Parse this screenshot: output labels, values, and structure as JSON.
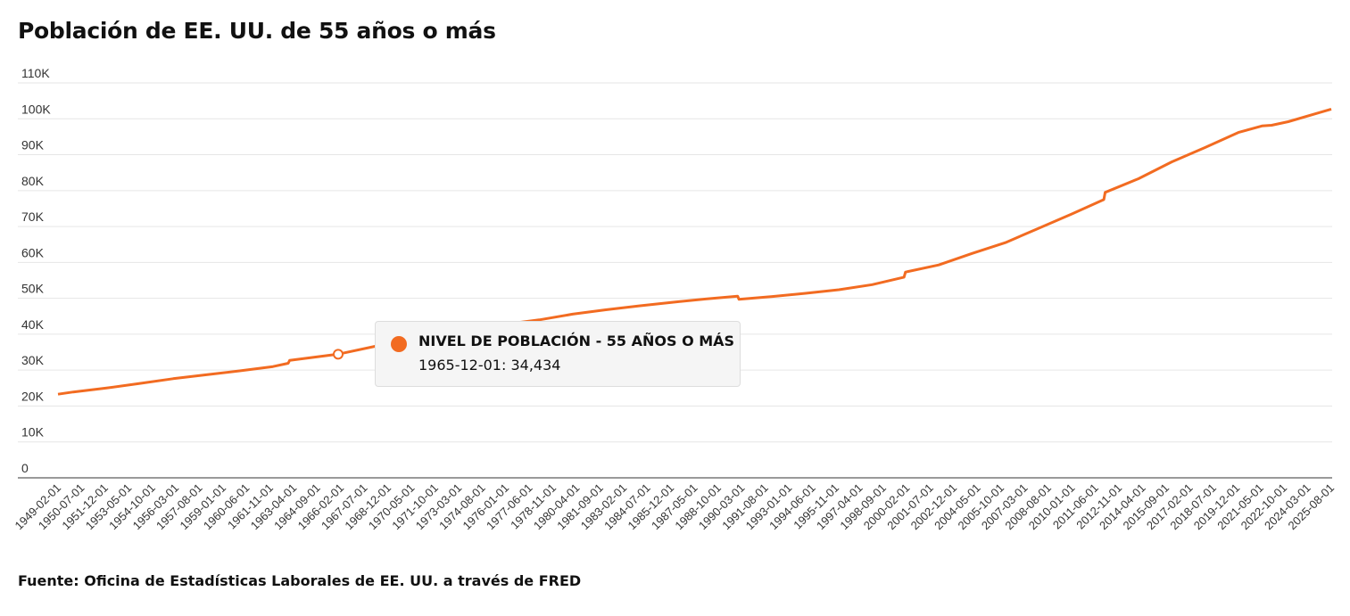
{
  "title": "Población de EE. UU. de 55 años o más",
  "source": "Fuente: Oficina de Estadísticas Laborales de EE. UU. a través de FRED",
  "colors": {
    "series": "#f26b21",
    "grid": "#e6e6e6",
    "axis": "#999999",
    "tooltip_bg": "#f5f5f5"
  },
  "tooltip": {
    "series_name": "NIVEL DE POBLACIÓN - 55 AÑOS O MÁS",
    "value_text": "1965-12-01: 34,434",
    "date": "1965-12-01",
    "value": 34434
  },
  "chart_data": {
    "type": "line",
    "title": "Población de EE. UU. de 55 años o más",
    "xlabel": "",
    "ylabel": "",
    "ylim": [
      0,
      110000
    ],
    "xlim": [
      "1949-02-01",
      "2025-08-01"
    ],
    "grid": true,
    "legend": "none",
    "y_ticks": [
      {
        "value": 0,
        "label": "0"
      },
      {
        "value": 10000,
        "label": "10K"
      },
      {
        "value": 20000,
        "label": "20K"
      },
      {
        "value": 30000,
        "label": "30K"
      },
      {
        "value": 40000,
        "label": "40K"
      },
      {
        "value": 50000,
        "label": "50K"
      },
      {
        "value": 60000,
        "label": "60K"
      },
      {
        "value": 70000,
        "label": "70K"
      },
      {
        "value": 80000,
        "label": "80K"
      },
      {
        "value": 90000,
        "label": "90K"
      },
      {
        "value": 100000,
        "label": "100K"
      },
      {
        "value": 110000,
        "label": "110K"
      }
    ],
    "x_ticks": [
      "1949-02-01",
      "1950-07-01",
      "1951-12-01",
      "1953-05-01",
      "1954-10-01",
      "1956-03-01",
      "1957-08-01",
      "1959-01-01",
      "1960-06-01",
      "1961-11-01",
      "1963-04-01",
      "1964-09-01",
      "1966-02-01",
      "1967-07-01",
      "1968-12-01",
      "1970-05-01",
      "1971-10-01",
      "1973-03-01",
      "1974-08-01",
      "1976-01-01",
      "1977-06-01",
      "1978-11-01",
      "1980-04-01",
      "1981-09-01",
      "1983-02-01",
      "1984-07-01",
      "1985-12-01",
      "1987-05-01",
      "1988-10-01",
      "1990-03-01",
      "1991-08-01",
      "1993-01-01",
      "1994-06-01",
      "1995-11-01",
      "1997-04-01",
      "1998-09-01",
      "2000-02-01",
      "2001-07-01",
      "2002-12-01",
      "2004-05-01",
      "2005-10-01",
      "2007-03-01",
      "2008-08-01",
      "2010-01-01",
      "2011-06-01",
      "2012-11-01",
      "2014-04-01",
      "2015-09-01",
      "2017-02-01",
      "2018-07-01",
      "2019-12-01",
      "2021-05-01",
      "2022-10-01",
      "2024-03-01",
      "2025-08-01"
    ],
    "series": [
      {
        "x": [
          "1949-02-01",
          "1950-01-01",
          "1952-01-01",
          "1954-01-01",
          "1956-01-01",
          "1958-01-01",
          "1960-01-01",
          "1962-01-01",
          "1962-12-01",
          "1963-01-01",
          "1965-12-01",
          "1968-01-01",
          "1970-01-01",
          "1972-01-01",
          "1974-01-01",
          "1976-01-01",
          "1978-01-01",
          "1980-01-01",
          "1982-01-01",
          "1984-01-01",
          "1986-01-01",
          "1988-01-01",
          "1989-12-01",
          "1990-01-01",
          "1992-01-01",
          "1994-01-01",
          "1996-01-01",
          "1998-01-01",
          "1999-12-01",
          "2000-01-01",
          "2002-01-01",
          "2004-01-01",
          "2006-01-01",
          "2008-01-01",
          "2010-01-01",
          "2011-12-01",
          "2012-01-01",
          "2014-01-01",
          "2016-01-01",
          "2018-01-01",
          "2020-01-01",
          "2021-06-01",
          "2022-01-01",
          "2023-01-01",
          "2025-08-01"
        ],
        "y": [
          23300,
          23900,
          25000,
          26300,
          27600,
          28700,
          29800,
          31000,
          31900,
          32700,
          34434,
          36500,
          38500,
          40300,
          41800,
          42800,
          44000,
          45600,
          46800,
          47900,
          48900,
          49800,
          50600,
          49700,
          50500,
          51400,
          52400,
          53800,
          55900,
          57300,
          59300,
          62500,
          65500,
          69500,
          73500,
          77500,
          79500,
          83300,
          88000,
          92000,
          96200,
          98000,
          98200,
          99200,
          102700
        ]
      }
    ]
  }
}
